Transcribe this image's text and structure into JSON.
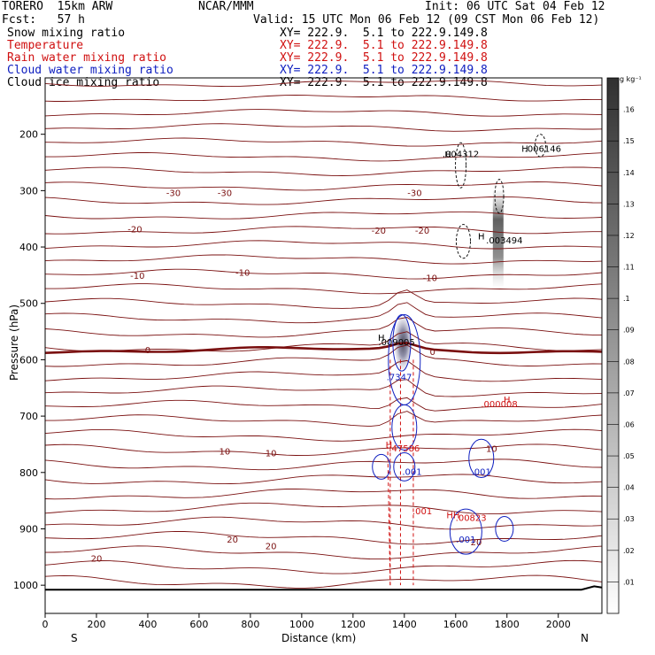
{
  "header": {
    "model": "TORERO  15km ARW",
    "center": "NCAR/MMM",
    "init": "Init: 06 UTC Sat 04 Feb 12",
    "fcst": "Fcst:   57 h",
    "valid": "Valid: 15 UTC Mon 06 Feb 12 (09 CST Mon 06 Feb 12)"
  },
  "legend": [
    {
      "label": "Snow mixing ratio",
      "xy": "XY= 222.9.  5.1 to 222.9.149.8",
      "color": "#000000"
    },
    {
      "label": "Temperature",
      "xy": "XY= 222.9.  5.1 to 222.9.149.8",
      "color": "#d01010"
    },
    {
      "label": "Rain water mixing ratio",
      "xy": "XY= 222.9.  5.1 to 222.9.149.8",
      "color": "#d01010"
    },
    {
      "label": "Cloud water mixing ratio",
      "xy": "XY= 222.9.  5.1 to 222.9.149.8",
      "color": "#1020c0"
    },
    {
      "label": "Cloud ice mixing ratio",
      "xy": "XY= 222.9.  5.1 to 222.9.149.8",
      "color": "#000000"
    }
  ],
  "chart_data": {
    "type": "contour",
    "title": "Cross-section",
    "xlabel": "Distance (km)",
    "ylabel": "Pressure (hPa)",
    "xlim": [
      0,
      2170
    ],
    "ylim": [
      1050,
      100
    ],
    "x_ticks": [
      0,
      200,
      400,
      600,
      800,
      1000,
      1200,
      1400,
      1600,
      1800,
      2000
    ],
    "y_ticks": [
      200,
      300,
      400,
      500,
      600,
      700,
      800,
      900,
      1000
    ],
    "x_end_labels": {
      "left": "S",
      "right": "N"
    },
    "colorbar": {
      "unit": "g kg⁻¹",
      "ticks": [
        ".01",
        ".02",
        ".03",
        ".04",
        ".05",
        ".06",
        ".07",
        ".08",
        ".09",
        ".1",
        ".11",
        ".12",
        ".13",
        ".14",
        ".15",
        ".16"
      ]
    },
    "temperature_labels": [
      {
        "text": "-30",
        "x": 500,
        "p": 303
      },
      {
        "text": "-30",
        "x": 700,
        "p": 303
      },
      {
        "text": "-30",
        "x": 1440,
        "p": 303
      },
      {
        "text": "-20",
        "x": 350,
        "p": 368
      },
      {
        "text": "-20",
        "x": 1300,
        "p": 370
      },
      {
        "text": "-20",
        "x": 1470,
        "p": 370
      },
      {
        "text": "-10",
        "x": 360,
        "p": 450
      },
      {
        "text": "-10",
        "x": 770,
        "p": 445
      },
      {
        "text": "-10",
        "x": 1500,
        "p": 454
      },
      {
        "text": "0",
        "x": 400,
        "p": 582
      },
      {
        "text": "0",
        "x": 1510,
        "p": 585
      },
      {
        "text": "10",
        "x": 700,
        "p": 762
      },
      {
        "text": "10",
        "x": 880,
        "p": 765
      },
      {
        "text": "10",
        "x": 1740,
        "p": 757
      },
      {
        "text": "20",
        "x": 730,
        "p": 918
      },
      {
        "text": "20",
        "x": 880,
        "p": 930
      },
      {
        "text": "20",
        "x": 1680,
        "p": 923
      },
      {
        "text": "20",
        "x": 200,
        "p": 952
      }
    ],
    "max_labels": [
      {
        "text": ".004312",
        "x": 1620,
        "p": 234,
        "color": "#000000"
      },
      {
        "text": ".006146",
        "x": 1940,
        "p": 225,
        "color": "#000000"
      },
      {
        "text": ".003494",
        "x": 1790,
        "p": 387,
        "color": "#000000"
      },
      {
        "text": ".009005",
        "x": 1370,
        "p": 568,
        "color": "#000000"
      },
      {
        "text": ".7347",
        "x": 1380,
        "p": 630,
        "color": "#1020c0"
      },
      {
        "text": ".000008",
        "x": 1770,
        "p": 678,
        "color": "#d01010"
      },
      {
        "text": ".47586",
        "x": 1400,
        "p": 756,
        "color": "#d01010"
      },
      {
        "text": ".001",
        "x": 1430,
        "p": 798,
        "color": "#1020c0"
      },
      {
        "text": ".001",
        "x": 1700,
        "p": 798,
        "color": "#1020c0"
      },
      {
        "text": ".001",
        "x": 1470,
        "p": 868,
        "color": "#d01010"
      },
      {
        "text": ".00823",
        "x": 1660,
        "p": 880,
        "color": "#d01010"
      },
      {
        "text": ".001",
        "x": 1640,
        "p": 918,
        "color": "#1020c0"
      }
    ],
    "h_markers": [
      {
        "text": "H",
        "x": 1570,
        "p": 235
      },
      {
        "text": "H",
        "x": 1870,
        "p": 225
      },
      {
        "text": "H",
        "x": 1700,
        "p": 380
      },
      {
        "text": "H",
        "x": 1310,
        "p": 560
      },
      {
        "text": "H",
        "x": 1800,
        "p": 670,
        "color": "#d01010"
      },
      {
        "text": "H",
        "x": 1340,
        "p": 750,
        "color": "#d01010"
      },
      {
        "text": "HH",
        "x": 1590,
        "p": 875,
        "color": "#d01010"
      }
    ],
    "pressure_levels": [
      1000,
      900,
      800,
      700,
      600,
      500,
      400,
      300,
      200
    ]
  }
}
